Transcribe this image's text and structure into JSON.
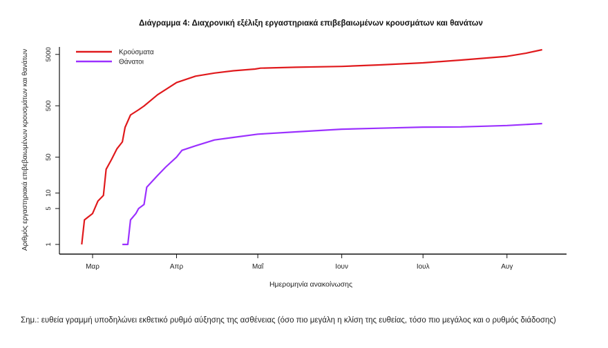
{
  "chart_data": {
    "type": "line",
    "title": "Διάγραμμα 4: Διαχρονική εξέλιξη εργαστηριακά επιβεβαιωμένων κρουσμάτων και θανάτων",
    "xlabel": "Ημερομηνία ανακοίνωσης",
    "ylabel": "Αριθμός εργαστηριακά επιβεβαιωμένων κρουσμάτων και θανάτων",
    "yscale": "log",
    "ylim": [
      0.8,
      9000
    ],
    "xlim": [
      "2020-02-22",
      "2020-08-24"
    ],
    "yticks": [
      1,
      5,
      10,
      50,
      500,
      5000
    ],
    "xticks": [
      {
        "date": "2020-03-01",
        "label": "Μαρ"
      },
      {
        "date": "2020-04-01",
        "label": "Απρ"
      },
      {
        "date": "2020-05-01",
        "label": "Μαΐ"
      },
      {
        "date": "2020-06-01",
        "label": "Ιουν"
      },
      {
        "date": "2020-07-01",
        "label": "Ιουλ"
      },
      {
        "date": "2020-08-01",
        "label": "Αυγ"
      }
    ],
    "grid": false,
    "legend_position": "top-left",
    "series": [
      {
        "name": "Κρούσματα",
        "color": "#e0191c",
        "points": [
          [
            "2020-02-26",
            1
          ],
          [
            "2020-02-27",
            3
          ],
          [
            "2020-03-01",
            4
          ],
          [
            "2020-03-03",
            7
          ],
          [
            "2020-03-05",
            9
          ],
          [
            "2020-03-06",
            29
          ],
          [
            "2020-03-08",
            45
          ],
          [
            "2020-03-10",
            73
          ],
          [
            "2020-03-12",
            99
          ],
          [
            "2020-03-13",
            190
          ],
          [
            "2020-03-15",
            331
          ],
          [
            "2020-03-18",
            418
          ],
          [
            "2020-03-20",
            495
          ],
          [
            "2020-03-25",
            821
          ],
          [
            "2020-04-01",
            1415
          ],
          [
            "2020-04-08",
            1884
          ],
          [
            "2020-04-15",
            2170
          ],
          [
            "2020-04-22",
            2401
          ],
          [
            "2020-04-30",
            2591
          ],
          [
            "2020-05-02",
            2700
          ],
          [
            "2020-05-15",
            2810
          ],
          [
            "2020-06-01",
            2918
          ],
          [
            "2020-06-15",
            3121
          ],
          [
            "2020-07-01",
            3432
          ],
          [
            "2020-07-15",
            3880
          ],
          [
            "2020-08-01",
            4587
          ],
          [
            "2020-08-08",
            5270
          ],
          [
            "2020-08-14",
            6177
          ]
        ]
      },
      {
        "name": "Θάνατοι",
        "color": "#9b30ff",
        "points": [
          [
            "2020-03-12",
            1
          ],
          [
            "2020-03-14",
            1
          ],
          [
            "2020-03-15",
            3
          ],
          [
            "2020-03-17",
            4
          ],
          [
            "2020-03-18",
            5
          ],
          [
            "2020-03-20",
            6
          ],
          [
            "2020-03-21",
            13
          ],
          [
            "2020-03-25",
            22
          ],
          [
            "2020-03-28",
            32
          ],
          [
            "2020-04-01",
            50
          ],
          [
            "2020-04-03",
            68
          ],
          [
            "2020-04-08",
            83
          ],
          [
            "2020-04-15",
            108
          ],
          [
            "2020-04-22",
            121
          ],
          [
            "2020-05-01",
            140
          ],
          [
            "2020-05-15",
            155
          ],
          [
            "2020-06-01",
            175
          ],
          [
            "2020-06-15",
            183
          ],
          [
            "2020-07-01",
            192
          ],
          [
            "2020-07-15",
            194
          ],
          [
            "2020-08-01",
            206
          ],
          [
            "2020-08-14",
            225
          ]
        ]
      }
    ]
  },
  "note": "Σημ.: ευθεία γραμμή υποδηλώνει εκθετικό ρυθμό αύξησης της ασθένειας (όσο πιο μεγάλη η κλίση της ευθείας, τόσο πιο μεγάλος και ο ρυθμός διάδοσης)"
}
